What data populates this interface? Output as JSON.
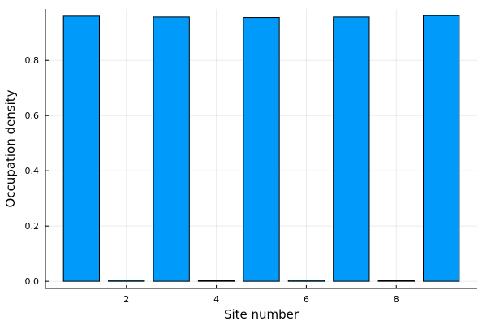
{
  "chart_data": {
    "type": "bar",
    "title": "",
    "xlabel": "Site number",
    "ylabel": "Occupation density",
    "x": [
      1,
      2,
      3,
      4,
      5,
      6,
      7,
      8,
      9
    ],
    "values": [
      0.96,
      0.004,
      0.957,
      0.003,
      0.955,
      0.004,
      0.957,
      0.003,
      0.962
    ],
    "xlim": [
      0.2,
      9.8
    ],
    "ylim": [
      -0.026,
      0.986
    ],
    "xticks": [
      2,
      4,
      6,
      8
    ],
    "xtick_labels": [
      "2",
      "4",
      "6",
      "8"
    ],
    "yticks": [
      0.0,
      0.2,
      0.4,
      0.6,
      0.8
    ],
    "ytick_labels": [
      "0.0",
      "0.2",
      "0.4",
      "0.6",
      "0.8"
    ],
    "grid": true,
    "legend": "none",
    "bar_color": "#009AFA",
    "edge_color": "#000000"
  }
}
